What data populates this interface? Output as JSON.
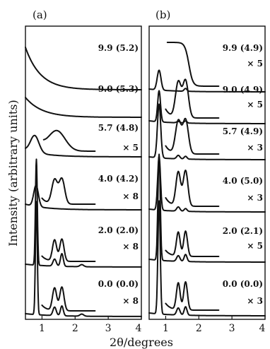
{
  "figure": {
    "ylabel": "Intensity (arbitrary units)",
    "xlabel": "2θ/degrees"
  },
  "chart_data": [
    {
      "type": "line",
      "panel_label": "(a)",
      "xlim": [
        0.5,
        4
      ],
      "x_ticks": [
        "1",
        "2",
        "3",
        "4"
      ],
      "series": [
        {
          "label": "9.9 (5.2)",
          "scale": ""
        },
        {
          "label": "9.0 (5.3)",
          "scale": ""
        },
        {
          "label": "5.7 (4.8)",
          "scale": "× 5"
        },
        {
          "label": "4.0 (4.2)",
          "scale": "× 8"
        },
        {
          "label": "2.0 (2.0)",
          "scale": "× 8"
        },
        {
          "label": "0.0 (0.0)",
          "scale": "× 8"
        }
      ]
    },
    {
      "type": "line",
      "panel_label": "(b)",
      "xlim": [
        0.5,
        4
      ],
      "x_ticks": [
        "1",
        "2",
        "3",
        "4"
      ],
      "series": [
        {
          "label": "9.9 (4.9)",
          "scale": "× 5"
        },
        {
          "label": "9.0 (4.9)",
          "scale": "× 5"
        },
        {
          "label": "5.7 (4.9)",
          "scale": "× 3"
        },
        {
          "label": "4.0 (5.0)",
          "scale": "× 3"
        },
        {
          "label": "2.0 (2.1)",
          "scale": "× 5"
        },
        {
          "label": "0.0 (0.0)",
          "scale": "× 3"
        }
      ]
    }
  ]
}
